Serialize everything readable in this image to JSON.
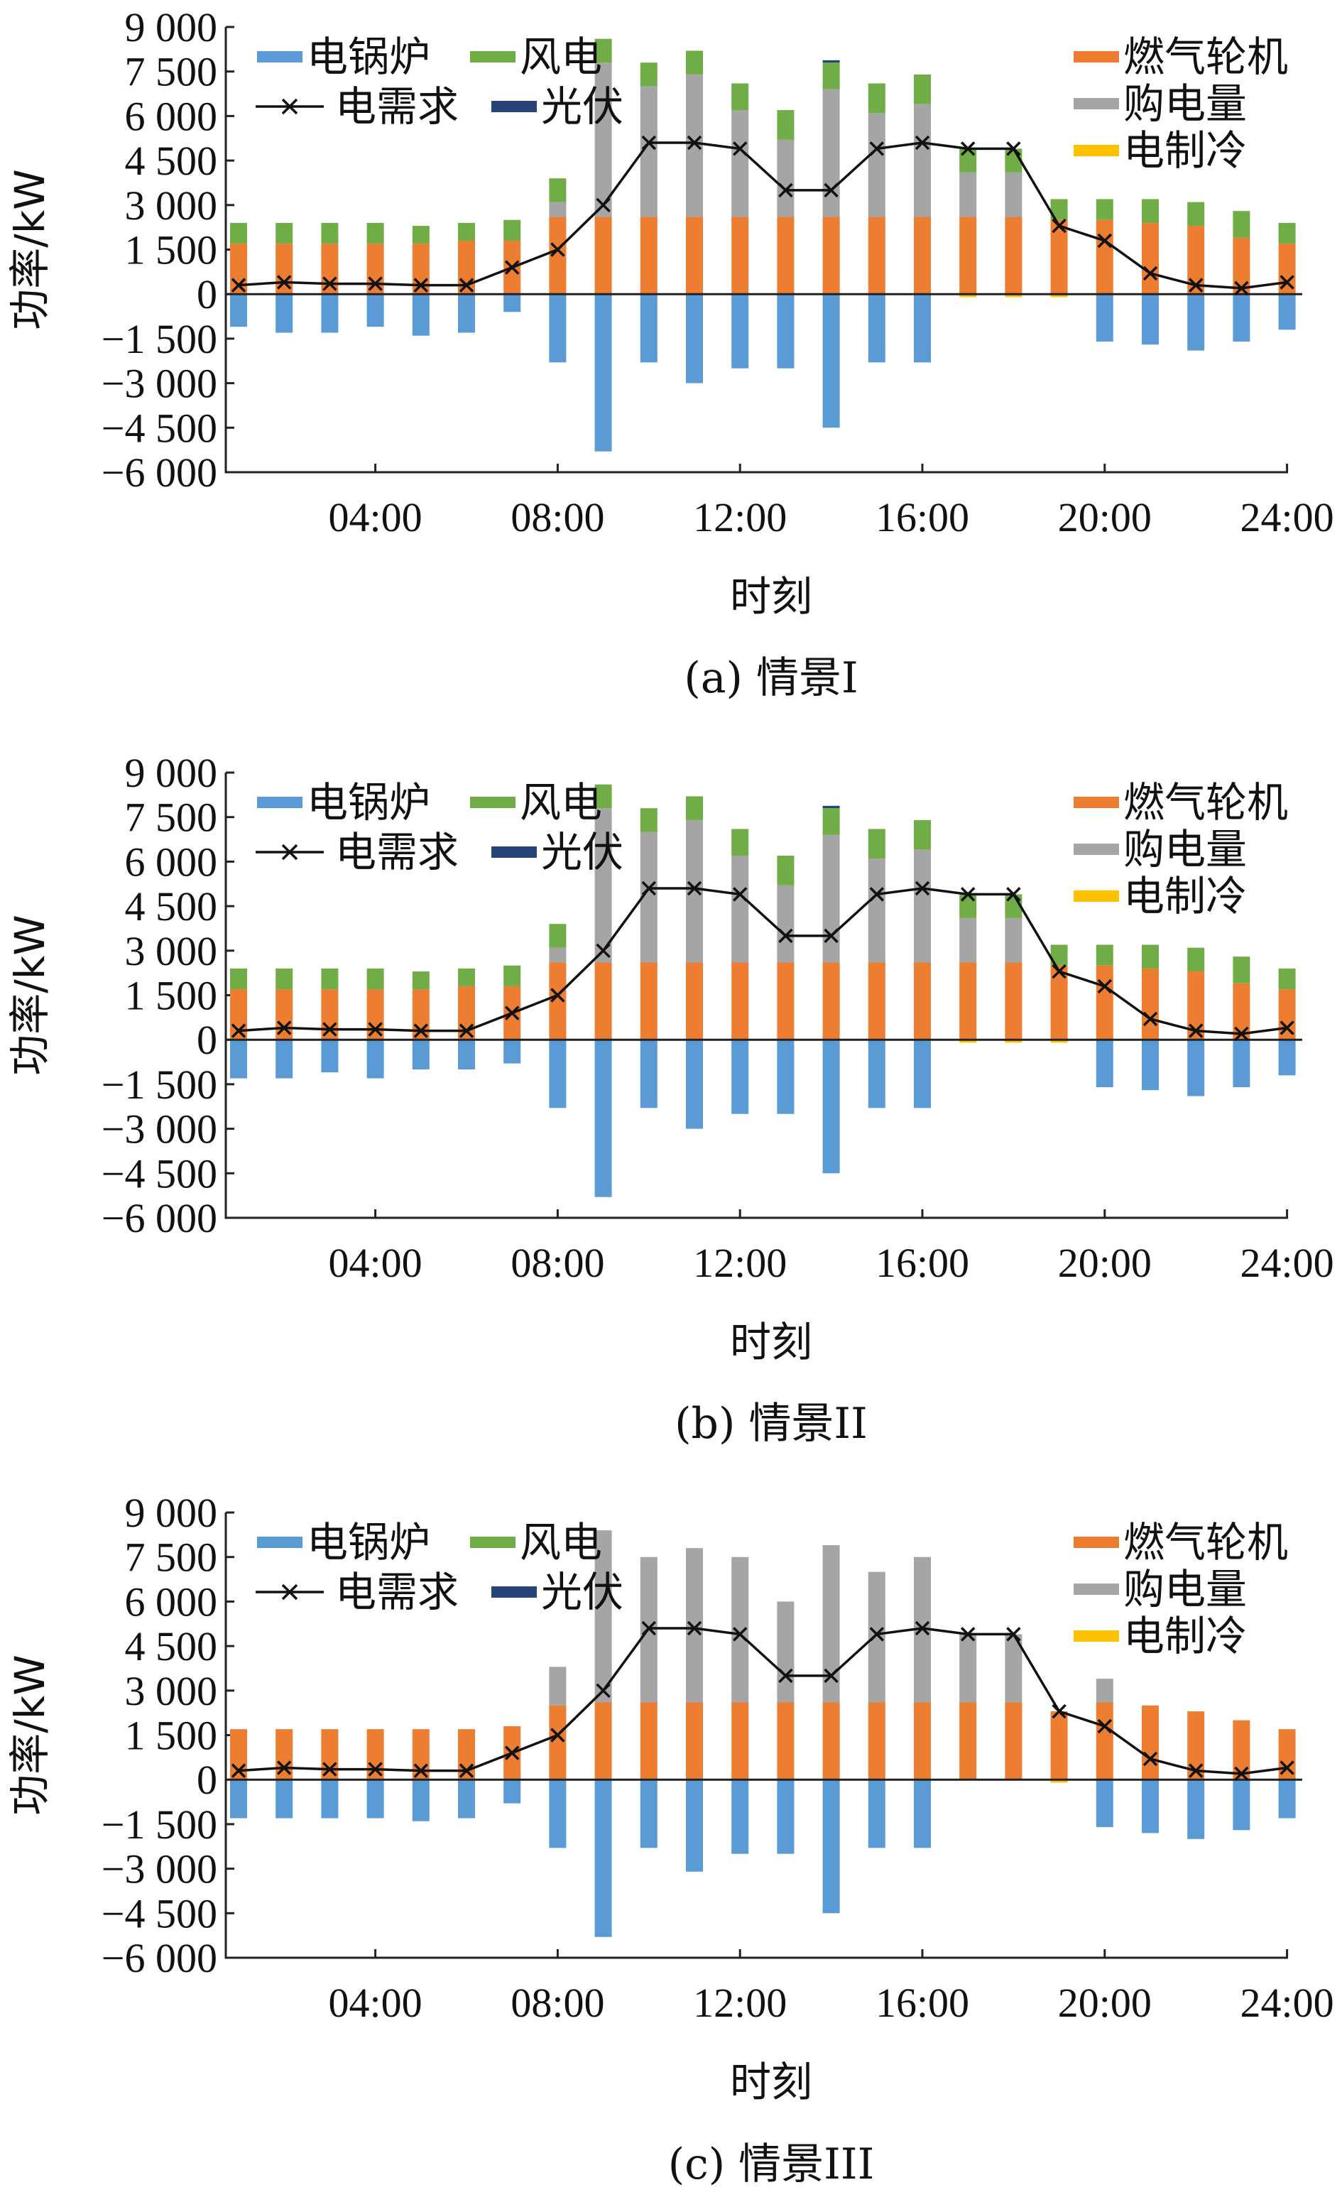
{
  "chart_data": [
    {
      "type": "bar",
      "caption": "(a) 情景I",
      "xlabel": "时刻",
      "ylabel": "功率/kW",
      "ylim": [
        -6000,
        9000
      ],
      "yticks": [
        9000,
        7500,
        6000,
        4500,
        3000,
        1500,
        0,
        -1500,
        -3000,
        -4500,
        -6000
      ],
      "ytick_labels": [
        "9 000",
        "7 500",
        "6 000",
        "4 500",
        "3 000",
        "1 500",
        "0",
        "−1 500",
        "−3 000",
        "−4 500",
        "−6 000"
      ],
      "xtick_labels": [
        "04:00",
        "08:00",
        "12:00",
        "16:00",
        "20:00",
        "24:00"
      ],
      "x": [
        1,
        2,
        3,
        4,
        5,
        6,
        7,
        8,
        9,
        10,
        11,
        12,
        13,
        14,
        15,
        16,
        17,
        18,
        19,
        20,
        21,
        22,
        23,
        24
      ],
      "legend": [
        "电锅炉",
        "风电",
        "电需求",
        "光伏",
        "燃气轮机",
        "购电量",
        "电制冷"
      ],
      "series": [
        {
          "name": "燃气轮机",
          "color": "#ED7D31",
          "values": [
            1700,
            1700,
            1700,
            1700,
            1700,
            1800,
            1800,
            2600,
            2600,
            2600,
            2600,
            2600,
            2600,
            2600,
            2600,
            2600,
            2600,
            2600,
            2500,
            2500,
            2400,
            2300,
            1900,
            1700
          ]
        },
        {
          "name": "购电量",
          "color": "#A5A5A5",
          "values": [
            0,
            0,
            0,
            0,
            0,
            0,
            0,
            500,
            5200,
            4400,
            4800,
            3600,
            2600,
            4300,
            3500,
            3800,
            1500,
            1500,
            0,
            0,
            0,
            0,
            0,
            0
          ]
        },
        {
          "name": "风电",
          "color": "#70AD47",
          "values": [
            700,
            700,
            700,
            700,
            600,
            600,
            700,
            800,
            800,
            800,
            800,
            900,
            1000,
            900,
            1000,
            1000,
            800,
            800,
            700,
            700,
            800,
            800,
            900,
            700
          ]
        },
        {
          "name": "光伏",
          "color": "#264478",
          "values": [
            0,
            0,
            0,
            0,
            0,
            0,
            0,
            0,
            0,
            0,
            0,
            0,
            0,
            80,
            0,
            0,
            0,
            0,
            0,
            0,
            0,
            0,
            0,
            0
          ]
        },
        {
          "name": "电制冷",
          "color": "#FFC000",
          "values": [
            0,
            0,
            0,
            0,
            0,
            0,
            0,
            0,
            0,
            0,
            0,
            0,
            0,
            0,
            0,
            0,
            -100,
            -100,
            -100,
            0,
            0,
            0,
            0,
            0
          ]
        },
        {
          "name": "电锅炉",
          "color": "#5B9BD5",
          "values": [
            -1100,
            -1300,
            -1300,
            -1100,
            -1400,
            -1300,
            -600,
            -2300,
            -5300,
            -2300,
            -3000,
            -2500,
            -2500,
            -4500,
            -2300,
            -2300,
            0,
            0,
            0,
            -1600,
            -1700,
            -1900,
            -1600,
            -1200
          ]
        },
        {
          "name": "电需求",
          "color": "#000000",
          "values": [
            300,
            400,
            350,
            350,
            300,
            300,
            900,
            1500,
            3000,
            5100,
            5100,
            4900,
            3500,
            3500,
            4900,
            5100,
            4900,
            4900,
            2300,
            1800,
            700,
            300,
            200,
            400
          ]
        }
      ]
    },
    {
      "type": "bar",
      "caption": "(b) 情景II",
      "xlabel": "时刻",
      "ylabel": "功率/kW",
      "ylim": [
        -6000,
        9000
      ],
      "yticks": [
        9000,
        7500,
        6000,
        4500,
        3000,
        1500,
        0,
        -1500,
        -3000,
        -4500,
        -6000
      ],
      "ytick_labels": [
        "9 000",
        "7 500",
        "6 000",
        "4 500",
        "3 000",
        "1 500",
        "0",
        "−1 500",
        "−3 000",
        "−4 500",
        "−6 000"
      ],
      "xtick_labels": [
        "04:00",
        "08:00",
        "12:00",
        "16:00",
        "20:00",
        "24:00"
      ],
      "x": [
        1,
        2,
        3,
        4,
        5,
        6,
        7,
        8,
        9,
        10,
        11,
        12,
        13,
        14,
        15,
        16,
        17,
        18,
        19,
        20,
        21,
        22,
        23,
        24
      ],
      "legend": [
        "电锅炉",
        "风电",
        "电需求",
        "光伏",
        "燃气轮机",
        "购电量",
        "电制冷"
      ],
      "series": [
        {
          "name": "燃气轮机",
          "color": "#ED7D31",
          "values": [
            1700,
            1700,
            1700,
            1700,
            1700,
            1800,
            1800,
            2600,
            2600,
            2600,
            2600,
            2600,
            2600,
            2600,
            2600,
            2600,
            2600,
            2600,
            2500,
            2500,
            2400,
            2300,
            1900,
            1700
          ]
        },
        {
          "name": "购电量",
          "color": "#A5A5A5",
          "values": [
            0,
            0,
            0,
            0,
            0,
            0,
            0,
            500,
            5200,
            4400,
            4800,
            3600,
            2600,
            4300,
            3500,
            3800,
            1500,
            1500,
            0,
            0,
            0,
            0,
            0,
            0
          ]
        },
        {
          "name": "风电",
          "color": "#70AD47",
          "values": [
            700,
            700,
            700,
            700,
            600,
            600,
            700,
            800,
            800,
            800,
            800,
            900,
            1000,
            900,
            1000,
            1000,
            800,
            800,
            700,
            700,
            800,
            800,
            900,
            700
          ]
        },
        {
          "name": "光伏",
          "color": "#264478",
          "values": [
            0,
            0,
            0,
            0,
            0,
            0,
            0,
            0,
            0,
            0,
            0,
            0,
            0,
            80,
            0,
            0,
            0,
            0,
            0,
            0,
            0,
            0,
            0,
            0
          ]
        },
        {
          "name": "电制冷",
          "color": "#FFC000",
          "values": [
            0,
            0,
            0,
            0,
            0,
            0,
            0,
            0,
            0,
            0,
            0,
            0,
            0,
            0,
            0,
            0,
            -100,
            -100,
            -100,
            0,
            0,
            0,
            0,
            0
          ]
        },
        {
          "name": "电锅炉",
          "color": "#5B9BD5",
          "values": [
            -1300,
            -1300,
            -1100,
            -1300,
            -1000,
            -1000,
            -800,
            -2300,
            -5300,
            -2300,
            -3000,
            -2500,
            -2500,
            -4500,
            -2300,
            -2300,
            0,
            0,
            0,
            -1600,
            -1700,
            -1900,
            -1600,
            -1200
          ]
        },
        {
          "name": "电需求",
          "color": "#000000",
          "values": [
            300,
            400,
            350,
            350,
            300,
            300,
            900,
            1500,
            3000,
            5100,
            5100,
            4900,
            3500,
            3500,
            4900,
            5100,
            4900,
            4900,
            2300,
            1800,
            700,
            300,
            200,
            400
          ]
        }
      ]
    },
    {
      "type": "bar",
      "caption": "(c) 情景III",
      "xlabel": "时刻",
      "ylabel": "功率/kW",
      "ylim": [
        -6000,
        9000
      ],
      "yticks": [
        9000,
        7500,
        6000,
        4500,
        3000,
        1500,
        0,
        -1500,
        -3000,
        -4500,
        -6000
      ],
      "ytick_labels": [
        "9 000",
        "7 500",
        "6 000",
        "4 500",
        "3 000",
        "1 500",
        "0",
        "−1 500",
        "−3 000",
        "−4 500",
        "−6 000"
      ],
      "xtick_labels": [
        "04:00",
        "08:00",
        "12:00",
        "16:00",
        "20:00",
        "24:00"
      ],
      "x": [
        1,
        2,
        3,
        4,
        5,
        6,
        7,
        8,
        9,
        10,
        11,
        12,
        13,
        14,
        15,
        16,
        17,
        18,
        19,
        20,
        21,
        22,
        23,
        24
      ],
      "legend": [
        "电锅炉",
        "风电",
        "电需求",
        "光伏",
        "燃气轮机",
        "购电量",
        "电制冷"
      ],
      "series": [
        {
          "name": "燃气轮机",
          "color": "#ED7D31",
          "values": [
            1700,
            1700,
            1700,
            1700,
            1700,
            1700,
            1800,
            2500,
            2600,
            2600,
            2600,
            2600,
            2600,
            2600,
            2600,
            2600,
            2600,
            2600,
            2300,
            2600,
            2500,
            2300,
            2000,
            1700
          ]
        },
        {
          "name": "购电量",
          "color": "#A5A5A5",
          "values": [
            0,
            0,
            0,
            0,
            0,
            0,
            0,
            1300,
            5800,
            4900,
            5200,
            4900,
            3400,
            5300,
            4400,
            4900,
            2300,
            2300,
            0,
            800,
            0,
            0,
            0,
            0
          ]
        },
        {
          "name": "风电",
          "color": "#70AD47",
          "values": [
            0,
            0,
            0,
            0,
            0,
            0,
            0,
            0,
            0,
            0,
            0,
            0,
            0,
            0,
            0,
            0,
            0,
            0,
            0,
            0,
            0,
            0,
            0,
            0
          ]
        },
        {
          "name": "光伏",
          "color": "#264478",
          "values": [
            0,
            0,
            0,
            0,
            0,
            0,
            0,
            0,
            0,
            0,
            0,
            0,
            0,
            0,
            0,
            0,
            0,
            0,
            0,
            0,
            0,
            0,
            0,
            0
          ]
        },
        {
          "name": "电制冷",
          "color": "#FFC000",
          "values": [
            0,
            0,
            0,
            0,
            0,
            0,
            0,
            0,
            0,
            0,
            0,
            0,
            0,
            0,
            0,
            0,
            0,
            0,
            -100,
            0,
            0,
            0,
            0,
            0
          ]
        },
        {
          "name": "电锅炉",
          "color": "#5B9BD5",
          "values": [
            -1300,
            -1300,
            -1300,
            -1300,
            -1400,
            -1300,
            -800,
            -2300,
            -5300,
            -2300,
            -3100,
            -2500,
            -2500,
            -4500,
            -2300,
            -2300,
            0,
            0,
            0,
            -1600,
            -1800,
            -2000,
            -1700,
            -1300
          ]
        },
        {
          "name": "电需求",
          "color": "#000000",
          "values": [
            300,
            400,
            350,
            350,
            300,
            300,
            900,
            1500,
            3000,
            5100,
            5100,
            4900,
            3500,
            3500,
            4900,
            5100,
            4900,
            4900,
            2300,
            1800,
            700,
            300,
            200,
            400
          ]
        }
      ]
    }
  ]
}
